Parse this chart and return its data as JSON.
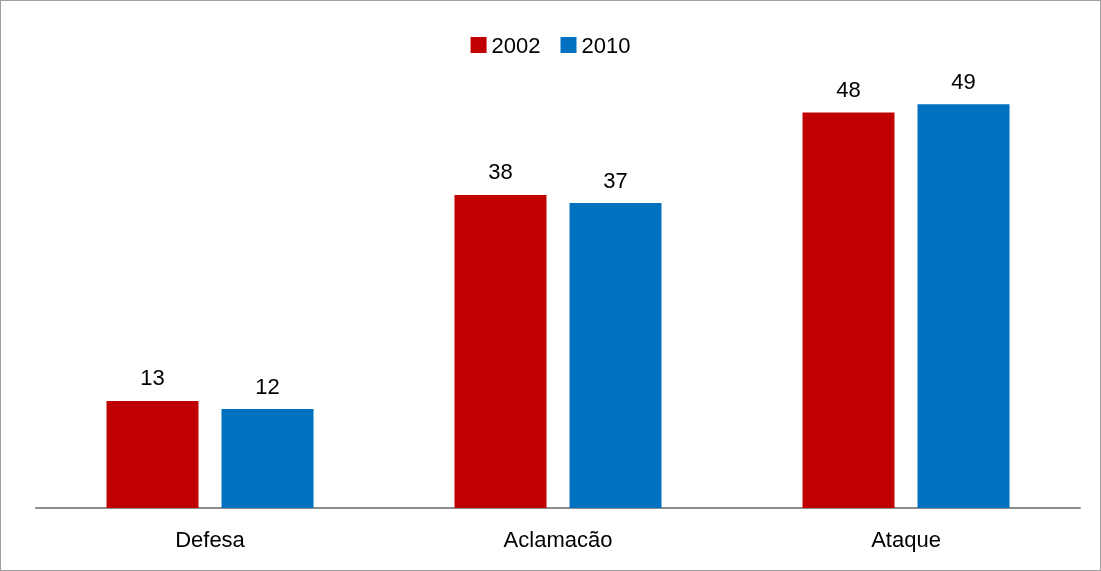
{
  "chart_data": {
    "type": "bar",
    "categories": [
      "Defesa",
      "Aclamacão",
      "Ataque"
    ],
    "series": [
      {
        "name": "2002",
        "color": "#c00000",
        "values": [
          13,
          38,
          48
        ]
      },
      {
        "name": "2010",
        "color": "#0070c0",
        "values": [
          12,
          37,
          49
        ]
      }
    ],
    "data_labels": true,
    "legend": "top"
  }
}
